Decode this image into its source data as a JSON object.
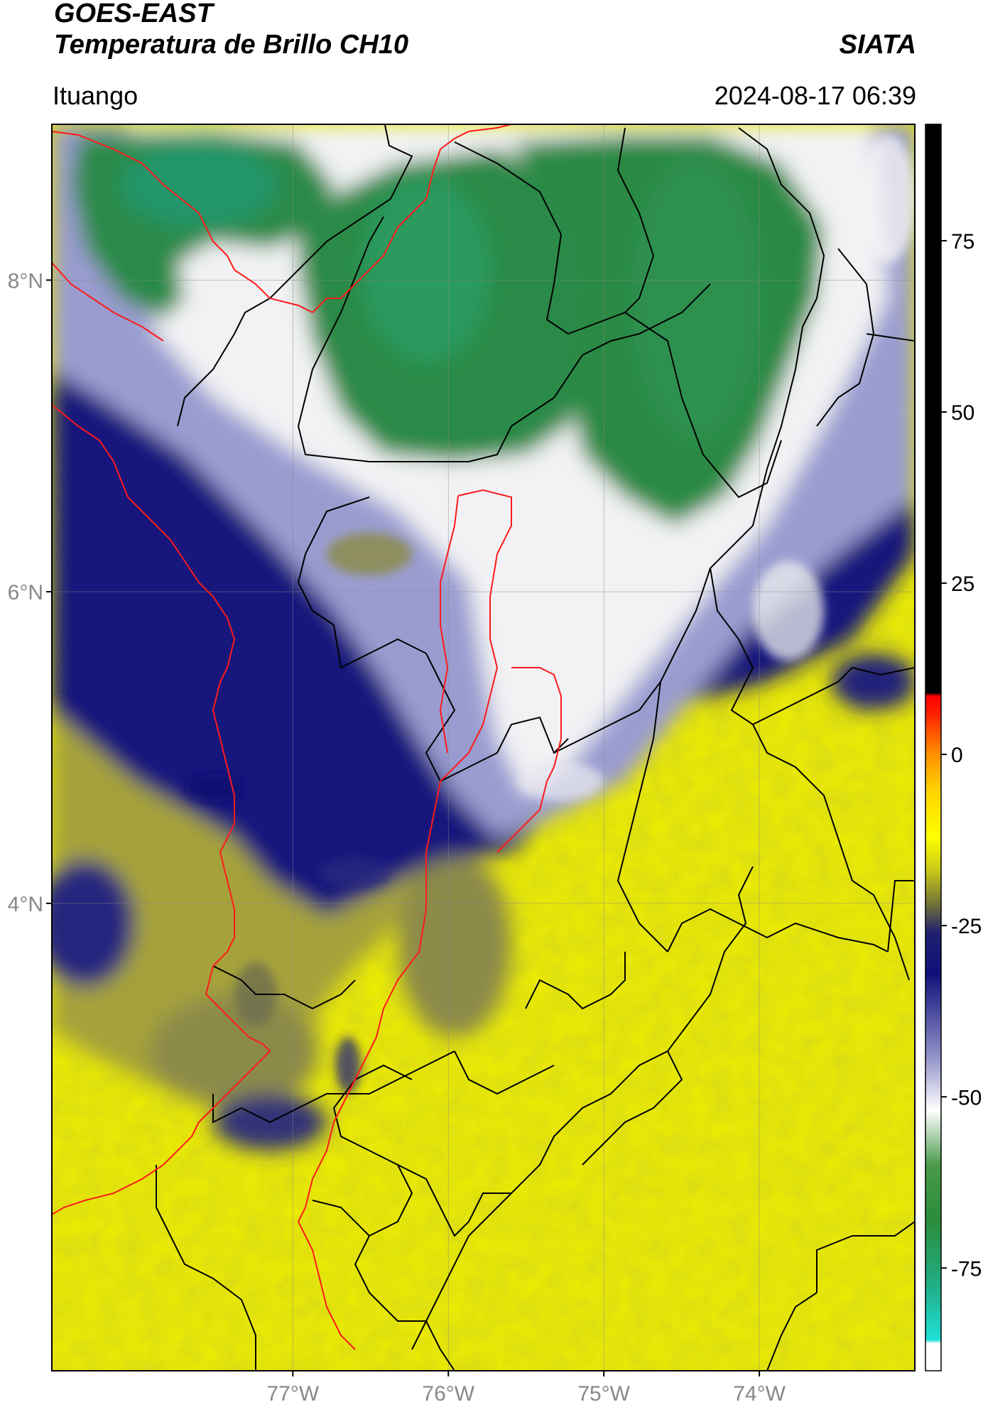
{
  "header": {
    "satellite": "GOES-EAST",
    "product": "Temperatura de Brillo CH10",
    "region": "Ituango",
    "org": "SIATA",
    "datetime": "2024-08-17 06:39"
  },
  "map": {
    "lon_range": [
      -78.55,
      -73.0
    ],
    "lat_range": [
      1.0,
      9.0
    ],
    "lat_ticks": [
      {
        "value": 8,
        "label": "8°N"
      },
      {
        "value": 6,
        "label": "6°N"
      },
      {
        "value": 4,
        "label": "4°N"
      }
    ],
    "lon_ticks": [
      {
        "value": -77,
        "label": "77°W"
      },
      {
        "value": -76,
        "label": "76°W"
      },
      {
        "value": -75,
        "label": "75°W"
      },
      {
        "value": -74,
        "label": "74°W"
      }
    ],
    "colors": {
      "warm_yellow": "#eef000",
      "olive": "#9e9c3a",
      "navy": "#15157a",
      "light_blue": "#8c8ec8",
      "white": "#f4f4f4",
      "green": "#2c8c48",
      "teal_green": "#22a070",
      "border_red": "#ff1a1a",
      "border_black": "#000000"
    }
  },
  "colorbar": {
    "range": [
      -90,
      92
    ],
    "ticks": [
      {
        "value": 75,
        "label": "75"
      },
      {
        "value": 50,
        "label": "50"
      },
      {
        "value": 25,
        "label": "25"
      },
      {
        "value": 0,
        "label": "0"
      },
      {
        "value": -25,
        "label": "-25"
      },
      {
        "value": -50,
        "label": "-50"
      },
      {
        "value": -75,
        "label": "-75"
      }
    ],
    "stops": [
      {
        "v": -90,
        "c": "#ffffff"
      },
      {
        "v": -86,
        "c": "#ffffff"
      },
      {
        "v": -85.5,
        "c": "#20e0d8"
      },
      {
        "v": -78,
        "c": "#20b08a"
      },
      {
        "v": -68,
        "c": "#2a8c3a"
      },
      {
        "v": -60,
        "c": "#4a9a4a"
      },
      {
        "v": -52,
        "c": "#ffffff"
      },
      {
        "v": -44,
        "c": "#9090c8"
      },
      {
        "v": -32,
        "c": "#10107a"
      },
      {
        "v": -26,
        "c": "#202070"
      },
      {
        "v": -22,
        "c": "#70703a"
      },
      {
        "v": -17,
        "c": "#c8c81a"
      },
      {
        "v": -12,
        "c": "#ffff00"
      },
      {
        "v": -5,
        "c": "#ffd000"
      },
      {
        "v": 0,
        "c": "#ff9000"
      },
      {
        "v": 6,
        "c": "#ff2000"
      },
      {
        "v": 8.5,
        "c": "#ff0000"
      },
      {
        "v": 9,
        "c": "#000000"
      },
      {
        "v": 92,
        "c": "#000000"
      }
    ]
  }
}
